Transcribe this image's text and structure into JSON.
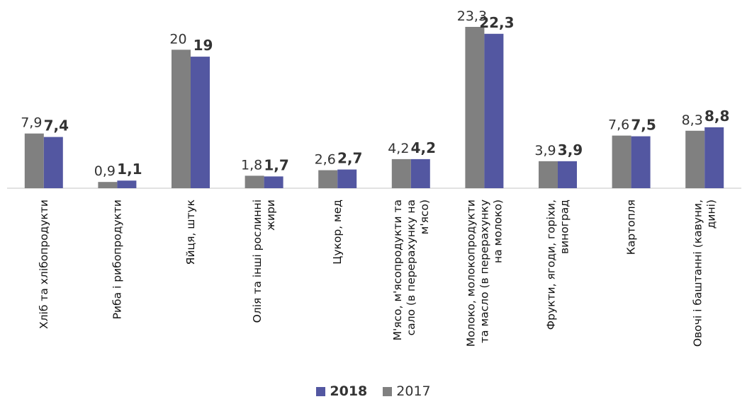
{
  "chart_data": {
    "type": "bar",
    "categories": [
      [
        "Хліб та хлібопродукти"
      ],
      [
        "Риба і рибопродукти"
      ],
      [
        "Яйця, штук"
      ],
      [
        "Олія та інші рослинні",
        "жири"
      ],
      [
        "Цукор, мед"
      ],
      [
        "М'ясо, м'ясопродукти та",
        "сало (в перерахунку на",
        "м'ясо)"
      ],
      [
        "Молоко, молокопродукти",
        "та масло (в перерахунку",
        "на молоко)"
      ],
      [
        "Фрукти, ягоди, горіхи,",
        "виноград"
      ],
      [
        "Картопля"
      ],
      [
        "Овочі і баштанні (кавуни,",
        "дині)"
      ]
    ],
    "series": [
      {
        "name": "2017",
        "color": "#808080",
        "values": [
          7.9,
          0.9,
          20,
          1.8,
          2.6,
          4.2,
          23.3,
          3.9,
          7.6,
          8.3
        ],
        "labels": [
          "7,9",
          "0,9",
          "20",
          "1,8",
          "2,6",
          "4,2",
          "23,3",
          "3,9",
          "7,6",
          "8,3"
        ]
      },
      {
        "name": "2018",
        "color": "#5357a1",
        "values": [
          7.4,
          1.1,
          19,
          1.7,
          2.7,
          4.2,
          22.3,
          3.9,
          7.5,
          8.8
        ],
        "labels": [
          "7,4",
          "1,1",
          "19",
          "1,7",
          "2,7",
          "4,2",
          "22,3",
          "3,9",
          "7,5",
          "8,8"
        ]
      }
    ],
    "legend": {
      "position": "bottom",
      "order": [
        "2018",
        "2017"
      ]
    },
    "ylim": [
      0,
      24.5
    ],
    "grid": false,
    "axis_color": "#d9d9d9",
    "title": "",
    "xlabel": "",
    "ylabel": ""
  }
}
